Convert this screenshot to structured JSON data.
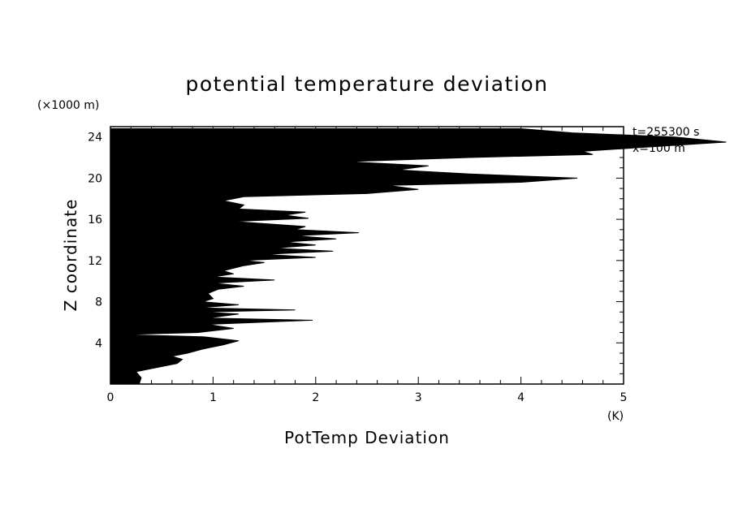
{
  "chart_data": {
    "type": "area",
    "title": "potential temperature deviation",
    "xlabel": "PotTemp Deviation",
    "xunit": "(K)",
    "ylabel": "Z coordinate",
    "yunit": "(×1000 m)",
    "annotations": [
      "t=255300 s",
      "x=100 m"
    ],
    "xlim": [
      0,
      5
    ],
    "ylim": [
      0,
      25
    ],
    "xticks": [
      "0",
      "1",
      "2",
      "3",
      "4",
      "5"
    ],
    "yticks": [
      "4",
      "8",
      "12",
      "16",
      "20",
      "24"
    ],
    "grid": false,
    "fill_color": "#000000",
    "series": [
      {
        "profile": [
          [
            0.0,
            0.28
          ],
          [
            0.6,
            0.3
          ],
          [
            1.2,
            0.25
          ],
          [
            2.0,
            0.65
          ],
          [
            2.4,
            0.7
          ],
          [
            2.7,
            0.6
          ],
          [
            3.0,
            0.75
          ],
          [
            3.4,
            0.9
          ],
          [
            3.8,
            1.1
          ],
          [
            4.2,
            1.25
          ],
          [
            4.6,
            0.9
          ],
          [
            4.8,
            0.1
          ],
          [
            5.0,
            0.85
          ],
          [
            5.4,
            1.2
          ],
          [
            5.8,
            0.95
          ],
          [
            6.2,
            1.97
          ],
          [
            6.4,
            0.95
          ],
          [
            6.8,
            1.25
          ],
          [
            7.0,
            0.9
          ],
          [
            7.2,
            1.8
          ],
          [
            7.4,
            0.85
          ],
          [
            7.7,
            1.25
          ],
          [
            8.0,
            0.9
          ],
          [
            8.3,
            1.0
          ],
          [
            8.8,
            0.95
          ],
          [
            9.2,
            1.05
          ],
          [
            9.5,
            1.3
          ],
          [
            9.8,
            1.0
          ],
          [
            10.1,
            1.6
          ],
          [
            10.4,
            1.0
          ],
          [
            10.7,
            1.2
          ],
          [
            11.0,
            1.1
          ],
          [
            11.5,
            1.3
          ],
          [
            11.8,
            1.5
          ],
          [
            12.0,
            1.3
          ],
          [
            12.3,
            2.0
          ],
          [
            12.6,
            1.5
          ],
          [
            12.9,
            2.17
          ],
          [
            13.2,
            1.6
          ],
          [
            13.5,
            2.0
          ],
          [
            13.8,
            1.7
          ],
          [
            14.1,
            2.2
          ],
          [
            14.4,
            1.8
          ],
          [
            14.7,
            2.42
          ],
          [
            15.0,
            1.8
          ],
          [
            15.3,
            1.9
          ],
          [
            15.8,
            1.2
          ],
          [
            16.1,
            1.93
          ],
          [
            16.4,
            1.7
          ],
          [
            16.7,
            1.9
          ],
          [
            17.0,
            1.25
          ],
          [
            17.4,
            1.3
          ],
          [
            17.8,
            1.1
          ],
          [
            18.2,
            1.3
          ],
          [
            18.5,
            2.5
          ],
          [
            18.9,
            3.0
          ],
          [
            19.3,
            2.7
          ],
          [
            19.6,
            4.0
          ],
          [
            20.0,
            4.55
          ],
          [
            20.4,
            3.5
          ],
          [
            20.8,
            2.8
          ],
          [
            21.2,
            3.1
          ],
          [
            21.6,
            2.3
          ],
          [
            22.0,
            3.5
          ],
          [
            22.3,
            4.7
          ],
          [
            22.6,
            4.6
          ],
          [
            23.0,
            5.2
          ],
          [
            23.5,
            6.0
          ],
          [
            24.0,
            5.5
          ],
          [
            24.4,
            4.5
          ],
          [
            24.8,
            4.0
          ]
        ]
      }
    ]
  }
}
